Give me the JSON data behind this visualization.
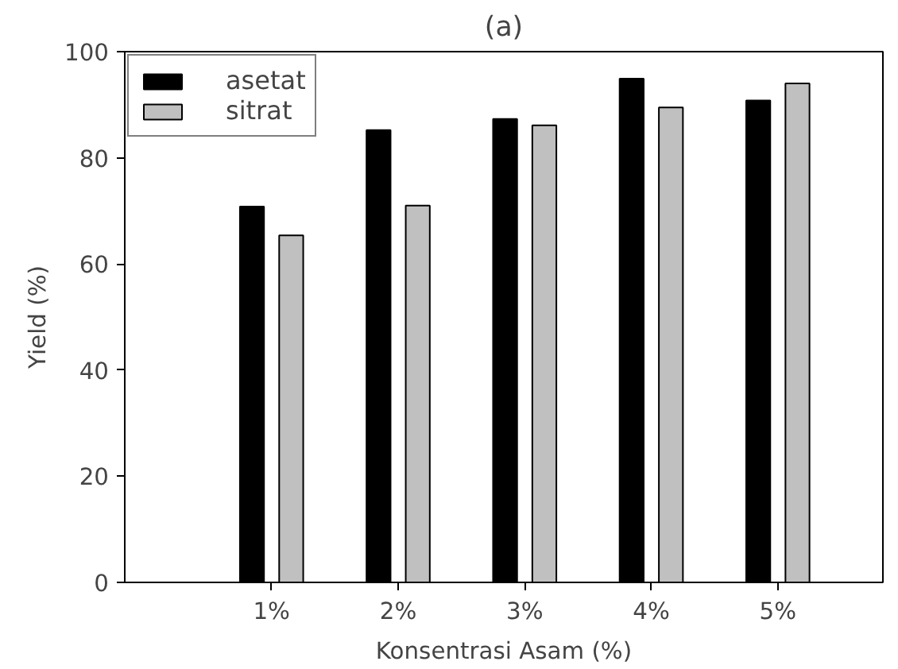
{
  "chart_data": {
    "type": "bar",
    "title": "(a)",
    "xlabel": "Konsentrasi Asam (%)",
    "ylabel": "Yield (%)",
    "categories": [
      "1%",
      "2%",
      "3%",
      "4%",
      "5%"
    ],
    "series": [
      {
        "name": "asetat",
        "color": "#000000",
        "values": [
          70.8,
          85.2,
          87.3,
          94.9,
          90.8
        ]
      },
      {
        "name": "sitrat",
        "color": "#c0c0c0",
        "values": [
          65.4,
          71.0,
          86.1,
          89.5,
          94.0
        ]
      }
    ],
    "ylim": [
      0,
      100
    ],
    "yticks": [
      0,
      20,
      40,
      60,
      80,
      100
    ],
    "grid": false,
    "legend": "top left"
  }
}
